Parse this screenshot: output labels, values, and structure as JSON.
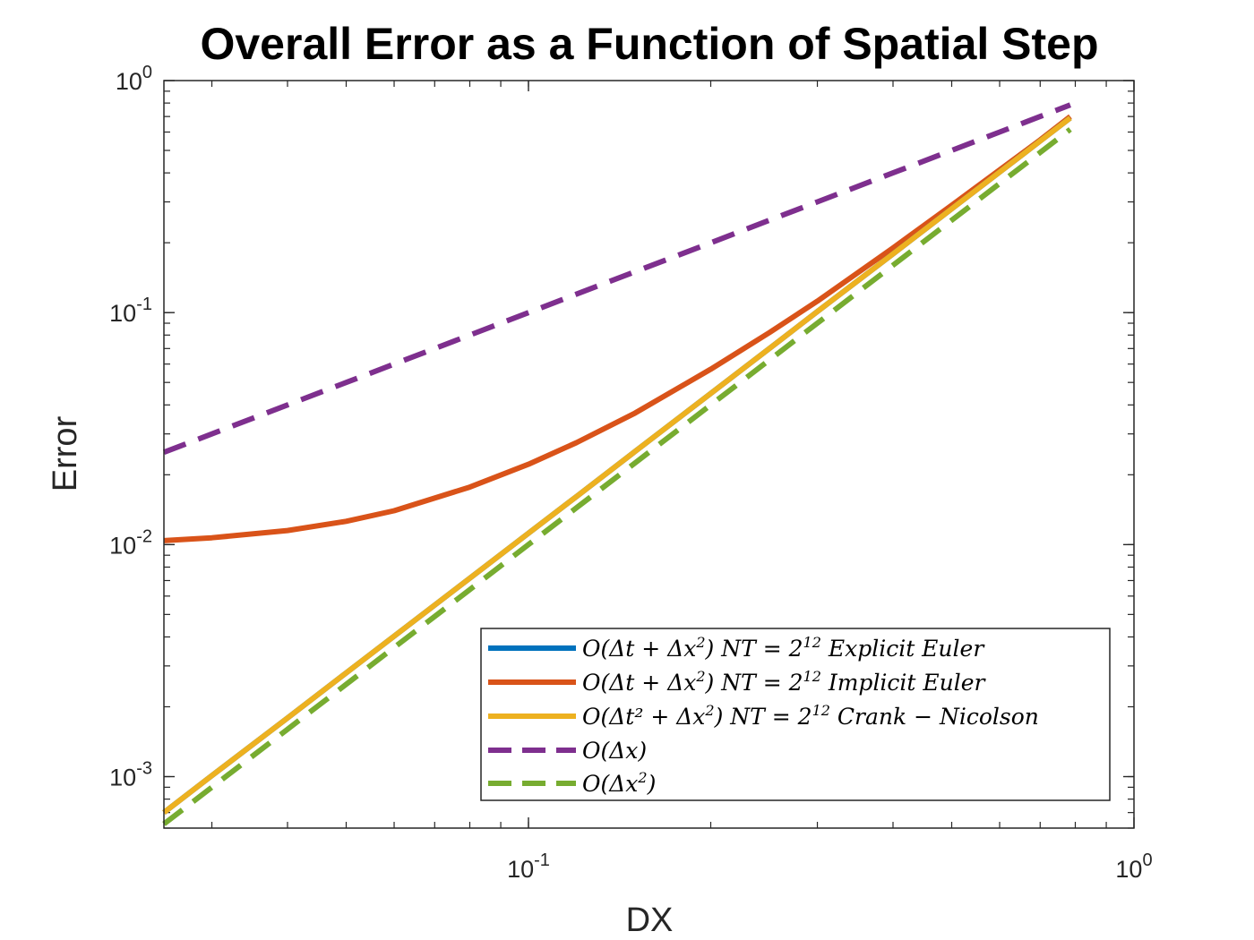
{
  "chart_data": {
    "type": "line",
    "title": "Overall Error as a Function of Spatial Step",
    "xlabel": "DX",
    "ylabel": "Error",
    "xscale": "log",
    "yscale": "log",
    "xlim": [
      0.025,
      1
    ],
    "ylim": [
      0.0006,
      1
    ],
    "xticks": [
      {
        "value": 0.1,
        "base": "10",
        "exp": "-1"
      },
      {
        "value": 1,
        "base": "10",
        "exp": "0"
      }
    ],
    "yticks": [
      {
        "value": 0.001,
        "base": "10",
        "exp": "-3"
      },
      {
        "value": 0.01,
        "base": "10",
        "exp": "-2"
      },
      {
        "value": 0.1,
        "base": "10",
        "exp": "-1"
      },
      {
        "value": 1,
        "base": "10",
        "exp": "0"
      }
    ],
    "grid": false,
    "box": true,
    "legend_position": "bottom-right",
    "x": [
      0.025,
      0.03,
      0.04,
      0.05,
      0.06,
      0.08,
      0.1,
      0.12,
      0.15,
      0.2,
      0.25,
      0.3,
      0.4,
      0.5,
      0.6,
      0.7,
      0.785
    ],
    "series": [
      {
        "name": "O(Δt + Δx²) NT = 2¹² Explicit Euler",
        "color": "#0072BD",
        "dash": "solid",
        "values": [
          0.0007,
          0.00101,
          0.00179,
          0.0028,
          0.00403,
          0.00716,
          0.0112,
          0.0161,
          0.0252,
          0.0448,
          0.07,
          0.101,
          0.179,
          0.28,
          0.403,
          0.549,
          0.69
        ]
      },
      {
        "name": "O(Δt + Δx²) NT = 2¹² Implicit Euler",
        "color": "#D95319",
        "dash": "solid",
        "values": [
          0.0104,
          0.0107,
          0.0115,
          0.0126,
          0.014,
          0.0177,
          0.0222,
          0.0275,
          0.0369,
          0.057,
          0.082,
          0.112,
          0.19,
          0.29,
          0.412,
          0.555,
          0.7
        ]
      },
      {
        "name": "O(Δt² + Δx²) NT = 2¹² Crank − Nicolson",
        "color": "#EDB120",
        "dash": "solid",
        "values": [
          0.0007,
          0.00101,
          0.00179,
          0.0028,
          0.00403,
          0.00716,
          0.0112,
          0.0161,
          0.0252,
          0.0448,
          0.07,
          0.101,
          0.179,
          0.28,
          0.403,
          0.549,
          0.69
        ]
      },
      {
        "name": "O(Δx)",
        "color": "#7E2F8E",
        "dash": "dashed",
        "values": [
          0.025,
          0.03,
          0.04,
          0.05,
          0.06,
          0.08,
          0.1,
          0.12,
          0.15,
          0.2,
          0.25,
          0.3,
          0.4,
          0.5,
          0.6,
          0.7,
          0.785
        ]
      },
      {
        "name": "O(Δx²)",
        "color": "#77AC30",
        "dash": "dashed",
        "values": [
          0.000625,
          0.0009,
          0.0016,
          0.0025,
          0.0036,
          0.0064,
          0.01,
          0.0144,
          0.0225,
          0.04,
          0.0625,
          0.09,
          0.16,
          0.25,
          0.36,
          0.49,
          0.616
        ]
      }
    ],
    "legend_entries": [
      {
        "O": "O(",
        "inner": "Δt + Δx",
        "sup1": "2",
        "close": ")",
        "nt": "NT = 2",
        "ntexp": "12",
        "method": "Explicit Euler"
      },
      {
        "O": "O(",
        "inner": "Δt + Δx",
        "sup1": "2",
        "close": ")",
        "nt": "NT = 2",
        "ntexp": "12",
        "method": "Implicit Euler"
      },
      {
        "O": "O(",
        "inner": "Δt² + Δx",
        "sup1": "2",
        "close": ")",
        "nt": "NT = 2",
        "ntexp": "12",
        "method": "Crank − Nicolson"
      },
      {
        "O": "O(",
        "inner": "Δx",
        "sup1": "",
        "close": ")",
        "nt": "",
        "ntexp": "",
        "method": ""
      },
      {
        "O": "O(",
        "inner": "Δx",
        "sup1": "2",
        "close": ")",
        "nt": "",
        "ntexp": "",
        "method": ""
      }
    ]
  }
}
